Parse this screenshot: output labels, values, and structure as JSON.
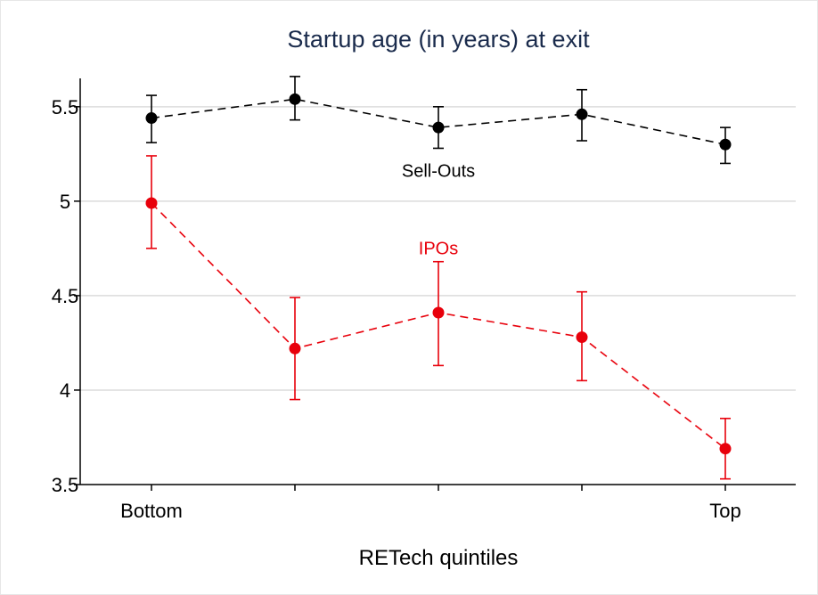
{
  "chart_data": {
    "type": "line",
    "title": "Startup age (in years) at exit",
    "xlabel": "RETech quintiles",
    "ylabel": "",
    "categories": [
      "Bottom",
      "",
      "",
      "",
      "Top"
    ],
    "ylim": [
      3.5,
      5.65
    ],
    "yticks": [
      3.5,
      4,
      4.5,
      5,
      5.5
    ],
    "ytick_labels": [
      "3.5",
      "4",
      "4.5",
      "5",
      "5.5"
    ],
    "grid": true,
    "series": [
      {
        "name": "Sell-Outs",
        "color": "#000000",
        "values": [
          5.44,
          5.54,
          5.39,
          5.46,
          5.3
        ],
        "ci_low": [
          5.31,
          5.43,
          5.28,
          5.32,
          5.2
        ],
        "ci_high": [
          5.56,
          5.66,
          5.5,
          5.59,
          5.39
        ]
      },
      {
        "name": "IPOs",
        "color": "#e8000b",
        "values": [
          4.99,
          4.22,
          4.41,
          4.28,
          3.69
        ],
        "ci_low": [
          4.75,
          3.95,
          4.13,
          4.05,
          3.53
        ],
        "ci_high": [
          5.24,
          4.49,
          4.68,
          4.52,
          3.85
        ]
      }
    ]
  }
}
